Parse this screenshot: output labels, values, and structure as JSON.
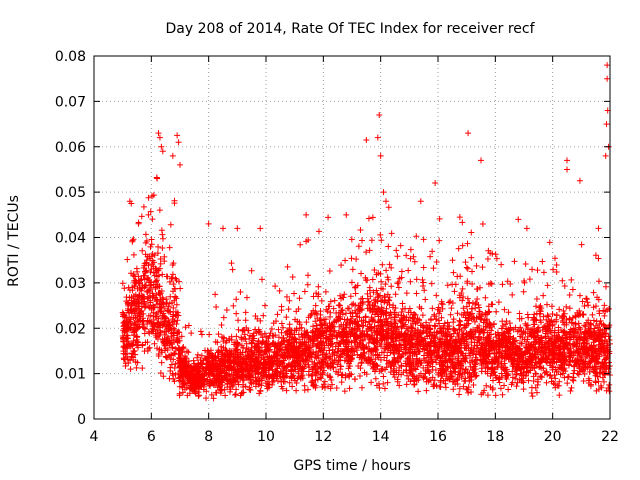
{
  "chart_data": {
    "type": "scatter",
    "title": "Day 208 of 2014, Rate Of TEC Index for receiver recf",
    "xlabel": "GPS time / hours",
    "ylabel": "ROTI / TECUs",
    "xlim": [
      4,
      22
    ],
    "ylim": [
      0,
      0.08
    ],
    "xticks": [
      "4",
      "6",
      "8",
      "10",
      "12",
      "14",
      "16",
      "18",
      "20",
      "22"
    ],
    "yticks": [
      "0",
      "0.01",
      "0.02",
      "0.03",
      "0.04",
      "0.05",
      "0.06",
      "0.07",
      "0.08"
    ],
    "grid": true,
    "marker": "+",
    "color": "#ff0000",
    "series": [
      {
        "name": "ROTI",
        "envelope": {
          "x": [
            5.0,
            5.3,
            5.6,
            6.0,
            6.2,
            6.5,
            6.8,
            7.0,
            7.3,
            7.6,
            8.0,
            8.5,
            9.0,
            9.5,
            10.0,
            10.5,
            11.0,
            11.5,
            12.0,
            12.5,
            13.0,
            13.5,
            14.0,
            14.5,
            15.0,
            15.5,
            16.0,
            16.5,
            17.0,
            17.5,
            18.0,
            18.5,
            19.0,
            19.5,
            20.0,
            20.5,
            21.0,
            21.5,
            22.0
          ],
          "median": [
            0.018,
            0.02,
            0.024,
            0.028,
            0.026,
            0.018,
            0.022,
            0.012,
            0.009,
            0.009,
            0.01,
            0.011,
            0.012,
            0.012,
            0.012,
            0.013,
            0.014,
            0.015,
            0.016,
            0.017,
            0.017,
            0.018,
            0.019,
            0.017,
            0.016,
            0.015,
            0.015,
            0.014,
            0.016,
            0.017,
            0.014,
            0.014,
            0.014,
            0.015,
            0.016,
            0.016,
            0.016,
            0.015,
            0.014
          ],
          "spread": [
            0.007,
            0.009,
            0.01,
            0.011,
            0.012,
            0.008,
            0.012,
            0.005,
            0.003,
            0.003,
            0.004,
            0.005,
            0.006,
            0.006,
            0.005,
            0.006,
            0.006,
            0.007,
            0.008,
            0.008,
            0.009,
            0.009,
            0.01,
            0.009,
            0.008,
            0.008,
            0.008,
            0.007,
            0.009,
            0.009,
            0.007,
            0.006,
            0.006,
            0.007,
            0.007,
            0.007,
            0.007,
            0.007,
            0.008
          ],
          "min": [
            0.005,
            0.006,
            0.008,
            0.01,
            0.012,
            0.007,
            0.006,
            0.005,
            0.005,
            0.005,
            0.004,
            0.005,
            0.005,
            0.005,
            0.006,
            0.006,
            0.006,
            0.006,
            0.006,
            0.006,
            0.006,
            0.006,
            0.006,
            0.006,
            0.006,
            0.006,
            0.006,
            0.005,
            0.005,
            0.005,
            0.005,
            0.005,
            0.005,
            0.005,
            0.005,
            0.005,
            0.005,
            0.005,
            0.005
          ],
          "max": [
            0.03,
            0.04,
            0.045,
            0.05,
            0.055,
            0.035,
            0.05,
            0.03,
            0.025,
            0.03,
            0.035,
            0.035,
            0.035,
            0.035,
            0.03,
            0.035,
            0.04,
            0.042,
            0.045,
            0.045,
            0.042,
            0.045,
            0.05,
            0.045,
            0.042,
            0.04,
            0.045,
            0.042,
            0.048,
            0.048,
            0.04,
            0.035,
            0.035,
            0.035,
            0.04,
            0.04,
            0.04,
            0.04,
            0.045
          ]
        },
        "peaks": [
          {
            "x": 5.25,
            "y": 0.048
          },
          {
            "x": 5.3,
            "y": 0.0475
          },
          {
            "x": 5.9,
            "y": 0.045
          },
          {
            "x": 6.2,
            "y": 0.053
          },
          {
            "x": 6.25,
            "y": 0.063
          },
          {
            "x": 6.3,
            "y": 0.062
          },
          {
            "x": 6.35,
            "y": 0.06
          },
          {
            "x": 6.4,
            "y": 0.059
          },
          {
            "x": 6.75,
            "y": 0.058
          },
          {
            "x": 6.9,
            "y": 0.0625
          },
          {
            "x": 6.95,
            "y": 0.061
          },
          {
            "x": 7.0,
            "y": 0.056
          },
          {
            "x": 13.5,
            "y": 0.0615
          },
          {
            "x": 13.95,
            "y": 0.067
          },
          {
            "x": 13.9,
            "y": 0.062
          },
          {
            "x": 14.0,
            "y": 0.058
          },
          {
            "x": 14.1,
            "y": 0.05
          },
          {
            "x": 17.05,
            "y": 0.063
          },
          {
            "x": 17.5,
            "y": 0.057
          },
          {
            "x": 20.5,
            "y": 0.057
          },
          {
            "x": 20.5,
            "y": 0.055
          },
          {
            "x": 20.95,
            "y": 0.0525
          },
          {
            "x": 21.9,
            "y": 0.078
          },
          {
            "x": 21.9,
            "y": 0.075
          },
          {
            "x": 21.92,
            "y": 0.068
          },
          {
            "x": 21.88,
            "y": 0.065
          },
          {
            "x": 21.85,
            "y": 0.058
          },
          {
            "x": 21.95,
            "y": 0.06
          },
          {
            "x": 8.0,
            "y": 0.043
          },
          {
            "x": 8.5,
            "y": 0.042
          },
          {
            "x": 9.0,
            "y": 0.042
          },
          {
            "x": 9.8,
            "y": 0.042
          },
          {
            "x": 11.4,
            "y": 0.045
          },
          {
            "x": 12.8,
            "y": 0.045
          },
          {
            "x": 15.4,
            "y": 0.048
          },
          {
            "x": 15.9,
            "y": 0.052
          },
          {
            "x": 18.8,
            "y": 0.044
          },
          {
            "x": 19.1,
            "y": 0.042
          },
          {
            "x": 21.6,
            "y": 0.042
          }
        ]
      }
    ]
  }
}
